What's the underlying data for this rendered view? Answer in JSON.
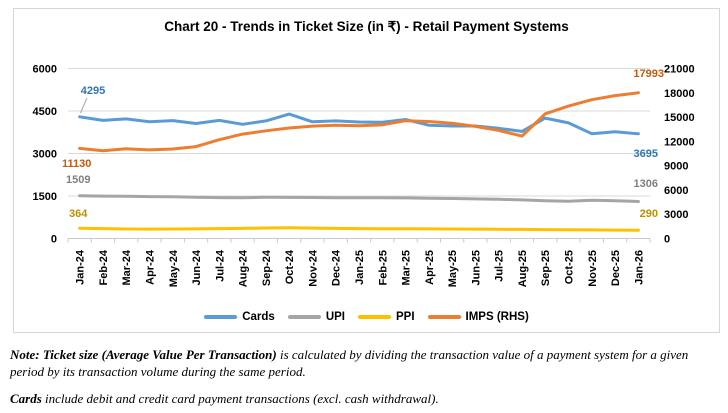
{
  "title": "Chart 20 - Trends in Ticket Size (in ₹) - Retail Payment Systems",
  "chart_data": {
    "type": "line",
    "categories": [
      "Jan-24",
      "Feb-24",
      "Mar-24",
      "Apr-24",
      "May-24",
      "Jun-24",
      "Jul-24",
      "Aug-24",
      "Sep-24",
      "Oct-24",
      "Nov-24",
      "Dec-24",
      "Jan-25",
      "Feb-25",
      "Mar-25",
      "Apr-25",
      "May-25",
      "Jun-25",
      "Jul-25",
      "Aug-25",
      "Sep-25",
      "Oct-25",
      "Nov-25",
      "Dec-25",
      "Jan-26"
    ],
    "series": [
      {
        "name": "Cards",
        "axis": "left",
        "color": "#5B9BD5",
        "label_color": "#2E75B6",
        "values": [
          4295,
          4170,
          4220,
          4120,
          4160,
          4060,
          4170,
          4030,
          4150,
          4390,
          4120,
          4150,
          4110,
          4100,
          4200,
          4000,
          3970,
          3970,
          3890,
          3780,
          4250,
          4080,
          3700,
          3770,
          3695
        ]
      },
      {
        "name": "UPI",
        "axis": "left",
        "color": "#A5A5A5",
        "label_color": "#808080",
        "values": [
          1509,
          1497,
          1488,
          1478,
          1470,
          1458,
          1445,
          1440,
          1455,
          1450,
          1446,
          1440,
          1437,
          1441,
          1434,
          1424,
          1413,
          1399,
          1383,
          1363,
          1330,
          1315,
          1352,
          1330,
          1306
        ]
      },
      {
        "name": "PPI",
        "axis": "left",
        "color": "#FFC000",
        "label_color": "#BF8F00",
        "values": [
          364,
          348,
          336,
          331,
          334,
          340,
          348,
          358,
          370,
          378,
          368,
          356,
          348,
          344,
          341,
          339,
          336,
          332,
          326,
          320,
          314,
          309,
          304,
          297,
          290
        ]
      },
      {
        "name": "IMPS (RHS)",
        "axis": "right",
        "color": "#ED7D31",
        "label_color": "#C45911",
        "values": [
          11130,
          10850,
          11080,
          10950,
          11060,
          11350,
          12200,
          12900,
          13300,
          13650,
          13880,
          13990,
          13940,
          14050,
          14550,
          14450,
          14240,
          13850,
          13350,
          12650,
          15400,
          16350,
          17150,
          17650,
          17993
        ]
      }
    ],
    "axes": {
      "left": {
        "min": 0,
        "max": 6000,
        "ticks": [
          0,
          1500,
          3000,
          4500,
          6000
        ]
      },
      "right": {
        "min": 0,
        "max": 21000,
        "ticks": [
          0,
          3000,
          6000,
          9000,
          12000,
          15000,
          18000,
          21000
        ]
      }
    },
    "grid": true,
    "legend_position": "bottom",
    "callouts": [
      {
        "id": "cards-first",
        "text": "4295",
        "series": 0
      },
      {
        "id": "imps-first",
        "text": "11130",
        "series": 3
      },
      {
        "id": "upi-first",
        "text": "1509",
        "series": 1
      },
      {
        "id": "ppi-first",
        "text": "364",
        "series": 2
      },
      {
        "id": "imps-last",
        "text": "17993",
        "series": 3
      },
      {
        "id": "cards-last",
        "text": "3695",
        "series": 0
      },
      {
        "id": "upi-last",
        "text": "1306",
        "series": 1
      },
      {
        "id": "ppi-last",
        "text": "290",
        "series": 2
      }
    ],
    "colors": {
      "gridline": "#D9D9D9",
      "axis_line": "#C9C9C9",
      "border": "#D7D7D7",
      "leader_line": "#A6A6A6"
    }
  },
  "notes": [
    {
      "bold": "Note: Ticket size (Average Value Per Transaction)",
      "rest": " is calculated by dividing the transaction value of a payment system for a given period by its transaction volume during the same period."
    },
    {
      "bold": "Cards",
      "rest": " include debit and credit card payment transactions (excl. cash withdrawal)."
    }
  ]
}
